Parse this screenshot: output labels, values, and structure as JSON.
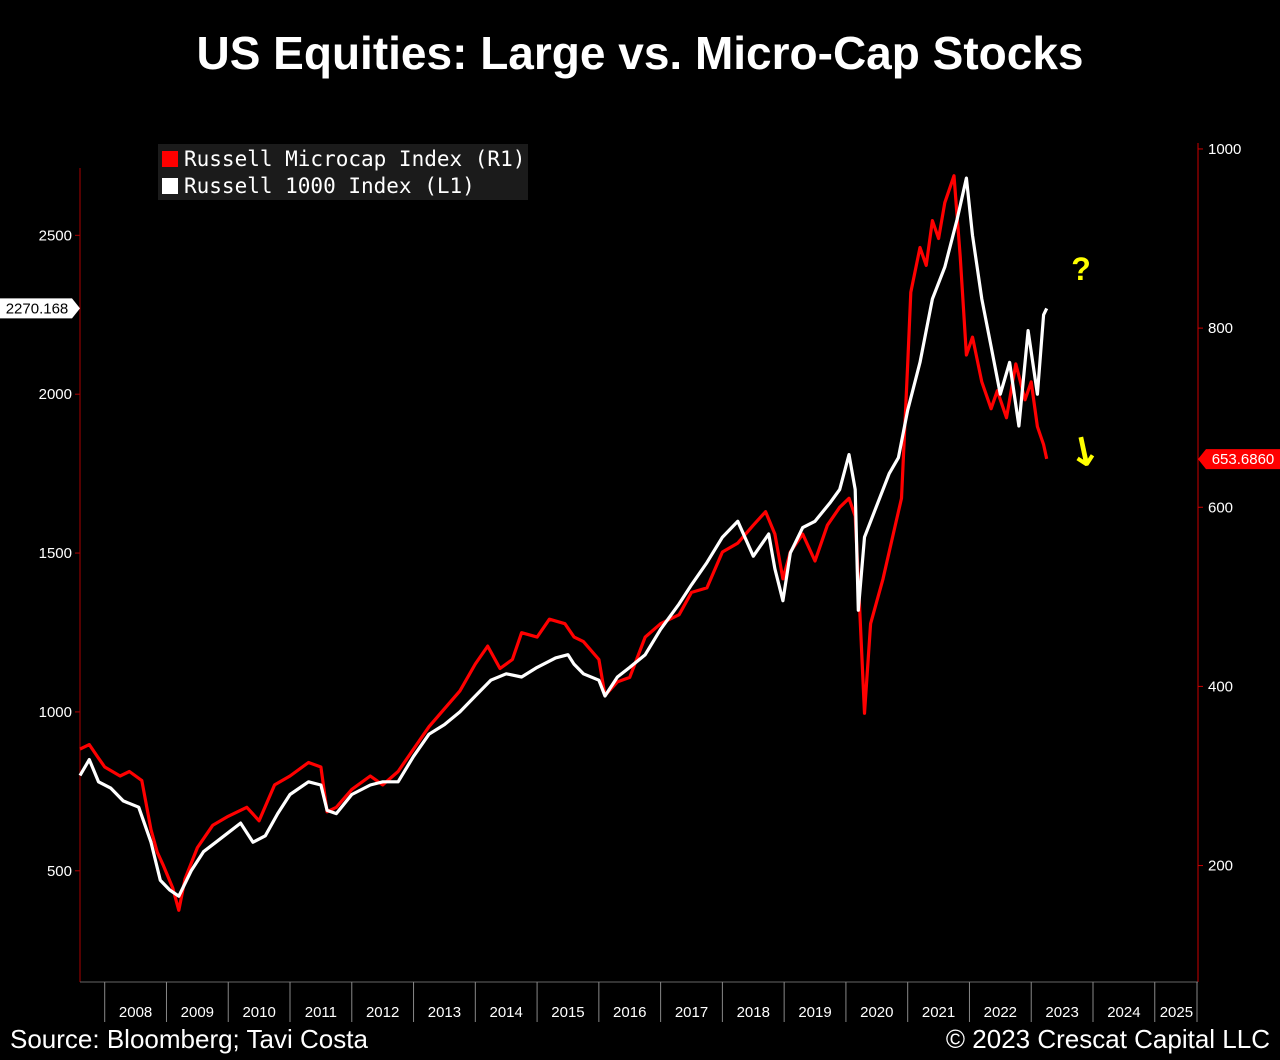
{
  "title": "US Equities: Large vs. Micro-Cap Stocks",
  "footer": {
    "source": "Source: Bloomberg; Tavi Costa",
    "copyright": "© 2023 Crescat Capital LLC"
  },
  "colors": {
    "background": "#000000",
    "microcap": "#ff0000",
    "russell1000": "#ffffff",
    "annotation": "#ffff00",
    "axis_right": "#cc0000",
    "axis_left": "#aa0000"
  },
  "annotations": {
    "question": "?",
    "arrow": "↓"
  },
  "chart_data": {
    "type": "line",
    "x_tick_labels": [
      "2008",
      "2009",
      "2010",
      "2011",
      "2012",
      "2013",
      "2014",
      "2015",
      "2016",
      "2017",
      "2018",
      "2019",
      "2020",
      "2021",
      "2022",
      "2023",
      "2024",
      "2025"
    ],
    "xlim": [
      2007.6,
      2025.7
    ],
    "left_axis": {
      "ticks": [
        500,
        1000,
        1500,
        2000,
        2500
      ],
      "ylim": [
        150,
        2800
      ],
      "last_value_label": "2270.168",
      "last_value": 2270.168
    },
    "right_axis": {
      "ticks": [
        200,
        400,
        600,
        800,
        1000
      ],
      "ylim": [
        70,
        1010
      ],
      "last_value_label": "653.6860",
      "last_value": 653.686
    },
    "legend_position": "top-left",
    "series": [
      {
        "name": "Russell Microcap Index (R1)",
        "axis": "right",
        "color": "#ff0000",
        "x": [
          2007.6,
          2007.75,
          2007.9,
          2008.0,
          2008.25,
          2008.4,
          2008.6,
          2008.75,
          2008.85,
          2008.95,
          2009.1,
          2009.2,
          2009.3,
          2009.5,
          2009.75,
          2010.0,
          2010.3,
          2010.5,
          2010.75,
          2011.0,
          2011.3,
          2011.5,
          2011.6,
          2011.75,
          2012.0,
          2012.3,
          2012.5,
          2012.75,
          2013.0,
          2013.25,
          2013.5,
          2013.75,
          2014.0,
          2014.2,
          2014.4,
          2014.6,
          2014.75,
          2015.0,
          2015.2,
          2015.45,
          2015.6,
          2015.75,
          2016.0,
          2016.1,
          2016.3,
          2016.5,
          2016.75,
          2017.0,
          2017.3,
          2017.5,
          2017.75,
          2018.0,
          2018.25,
          2018.5,
          2018.7,
          2018.85,
          2018.98,
          2019.1,
          2019.3,
          2019.5,
          2019.7,
          2019.9,
          2020.05,
          2020.15,
          2020.2,
          2020.3,
          2020.4,
          2020.6,
          2020.8,
          2020.9,
          2021.0,
          2021.05,
          2021.2,
          2021.3,
          2021.4,
          2021.5,
          2021.6,
          2021.75,
          2021.85,
          2021.95,
          2022.05,
          2022.2,
          2022.35,
          2022.45,
          2022.6,
          2022.75,
          2022.9,
          2023.0,
          2023.1,
          2023.2,
          2023.25
        ],
        "values": [
          330,
          335,
          320,
          310,
          300,
          305,
          295,
          240,
          215,
          200,
          175,
          150,
          185,
          220,
          245,
          255,
          265,
          250,
          290,
          300,
          315,
          310,
          260,
          265,
          285,
          300,
          290,
          305,
          330,
          355,
          375,
          395,
          425,
          445,
          420,
          430,
          460,
          455,
          475,
          470,
          455,
          450,
          430,
          390,
          405,
          410,
          455,
          470,
          480,
          505,
          510,
          550,
          560,
          580,
          595,
          570,
          520,
          550,
          570,
          540,
          580,
          600,
          610,
          590,
          520,
          370,
          470,
          520,
          580,
          610,
          760,
          840,
          890,
          870,
          920,
          900,
          940,
          970,
          880,
          770,
          790,
          740,
          710,
          730,
          700,
          760,
          720,
          740,
          690,
          670,
          654
        ]
      },
      {
        "name": "Russell 1000 Index (L1)",
        "axis": "left",
        "color": "#ffffff",
        "x": [
          2007.6,
          2007.75,
          2007.9,
          2008.1,
          2008.3,
          2008.55,
          2008.75,
          2008.9,
          2009.05,
          2009.2,
          2009.4,
          2009.6,
          2009.8,
          2010.0,
          2010.2,
          2010.4,
          2010.6,
          2010.8,
          2011.0,
          2011.3,
          2011.5,
          2011.6,
          2011.75,
          2012.0,
          2012.3,
          2012.5,
          2012.75,
          2013.0,
          2013.25,
          2013.5,
          2013.75,
          2014.0,
          2014.25,
          2014.5,
          2014.75,
          2015.0,
          2015.3,
          2015.5,
          2015.6,
          2015.75,
          2016.0,
          2016.1,
          2016.3,
          2016.5,
          2016.75,
          2017.0,
          2017.3,
          2017.5,
          2017.75,
          2018.0,
          2018.25,
          2018.5,
          2018.75,
          2018.85,
          2018.98,
          2019.1,
          2019.3,
          2019.5,
          2019.75,
          2019.9,
          2020.05,
          2020.15,
          2020.2,
          2020.3,
          2020.5,
          2020.7,
          2020.85,
          2021.0,
          2021.2,
          2021.4,
          2021.6,
          2021.8,
          2021.95,
          2022.05,
          2022.2,
          2022.35,
          2022.5,
          2022.65,
          2022.8,
          2022.95,
          2023.1,
          2023.2,
          2023.25
        ],
        "values": [
          800,
          850,
          780,
          760,
          720,
          700,
          590,
          470,
          440,
          420,
          500,
          560,
          590,
          620,
          650,
          590,
          610,
          680,
          740,
          780,
          770,
          690,
          680,
          740,
          770,
          780,
          780,
          860,
          930,
          960,
          1000,
          1050,
          1100,
          1120,
          1110,
          1140,
          1170,
          1180,
          1150,
          1120,
          1100,
          1050,
          1110,
          1140,
          1180,
          1260,
          1340,
          1400,
          1470,
          1550,
          1600,
          1490,
          1560,
          1450,
          1350,
          1500,
          1580,
          1600,
          1660,
          1700,
          1810,
          1700,
          1320,
          1550,
          1650,
          1750,
          1800,
          1950,
          2100,
          2300,
          2400,
          2550,
          2680,
          2500,
          2300,
          2150,
          2000,
          2100,
          1900,
          2200,
          2000,
          2250,
          2270
        ]
      }
    ]
  }
}
